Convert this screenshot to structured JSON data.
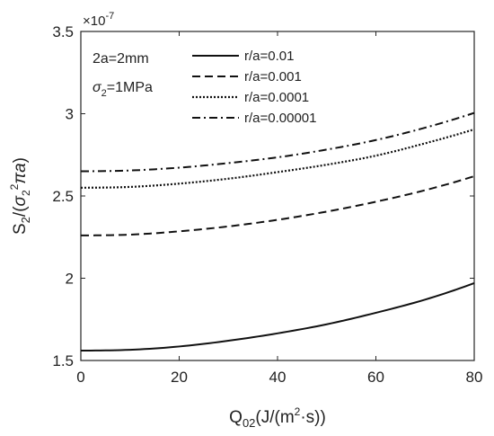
{
  "chart_data": {
    "type": "line",
    "xlabel": "Q02(J/(m²·s))",
    "ylabel": "S2/(σ2²πa)",
    "y_multiplier": "×10-7",
    "xlim": [
      0,
      80
    ],
    "ylim": [
      1.5,
      3.5
    ],
    "x_ticks": [
      "0",
      "20",
      "40",
      "60",
      "80"
    ],
    "y_ticks": [
      "1.5",
      "2",
      "2.5",
      "3",
      "3.5"
    ],
    "annotations": [
      "2a=2mm",
      "σ2=1MPa"
    ],
    "legend_position": "top-right",
    "grid": false,
    "x": [
      0,
      10,
      20,
      30,
      40,
      50,
      60,
      70,
      80
    ],
    "series": [
      {
        "name": "r/a=0.01",
        "style": "solid",
        "values": [
          1.56,
          1.565,
          1.585,
          1.62,
          1.665,
          1.72,
          1.79,
          1.87,
          1.97
        ]
      },
      {
        "name": "r/a=0.001",
        "style": "dashed",
        "values": [
          2.26,
          2.265,
          2.285,
          2.315,
          2.355,
          2.405,
          2.465,
          2.535,
          2.62
        ]
      },
      {
        "name": "r/a=0.0001",
        "style": "dotted",
        "values": [
          2.55,
          2.555,
          2.575,
          2.605,
          2.645,
          2.69,
          2.745,
          2.82,
          2.905
        ]
      },
      {
        "name": "r/a=0.00001",
        "style": "dashdot",
        "values": [
          2.65,
          2.655,
          2.672,
          2.7,
          2.735,
          2.782,
          2.84,
          2.915,
          3.005
        ]
      }
    ]
  }
}
